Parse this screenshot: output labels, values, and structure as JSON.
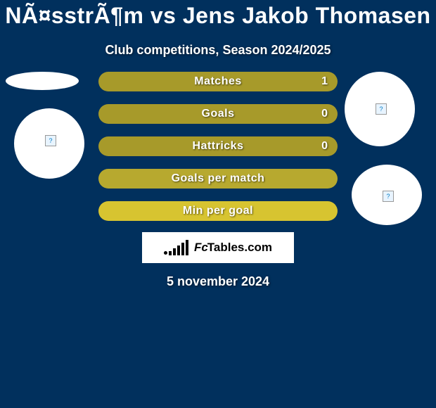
{
  "title": "NÃ¤sstrÃ¶m vs Jens Jakob Thomasen",
  "subtitle": "Club competitions, Season 2024/2025",
  "bars": [
    {
      "label": "Matches",
      "value": "1",
      "bg": "#a79a2a",
      "show_val": true
    },
    {
      "label": "Goals",
      "value": "0",
      "bg": "#a79a2a",
      "show_val": true
    },
    {
      "label": "Hattricks",
      "value": "0",
      "bg": "#a79a2a",
      "show_val": true
    },
    {
      "label": "Goals per match",
      "value": "",
      "bg": "#b7a92f",
      "show_val": false
    },
    {
      "label": "Min per goal",
      "value": "",
      "bg": "#d7c430",
      "show_val": false
    }
  ],
  "logo": {
    "fc": "Fc",
    "tables": "Tables",
    "com": ".com"
  },
  "date": "5 november 2024",
  "placeholder_glyph": "?",
  "colors": {
    "page_bg": "#01305d"
  }
}
